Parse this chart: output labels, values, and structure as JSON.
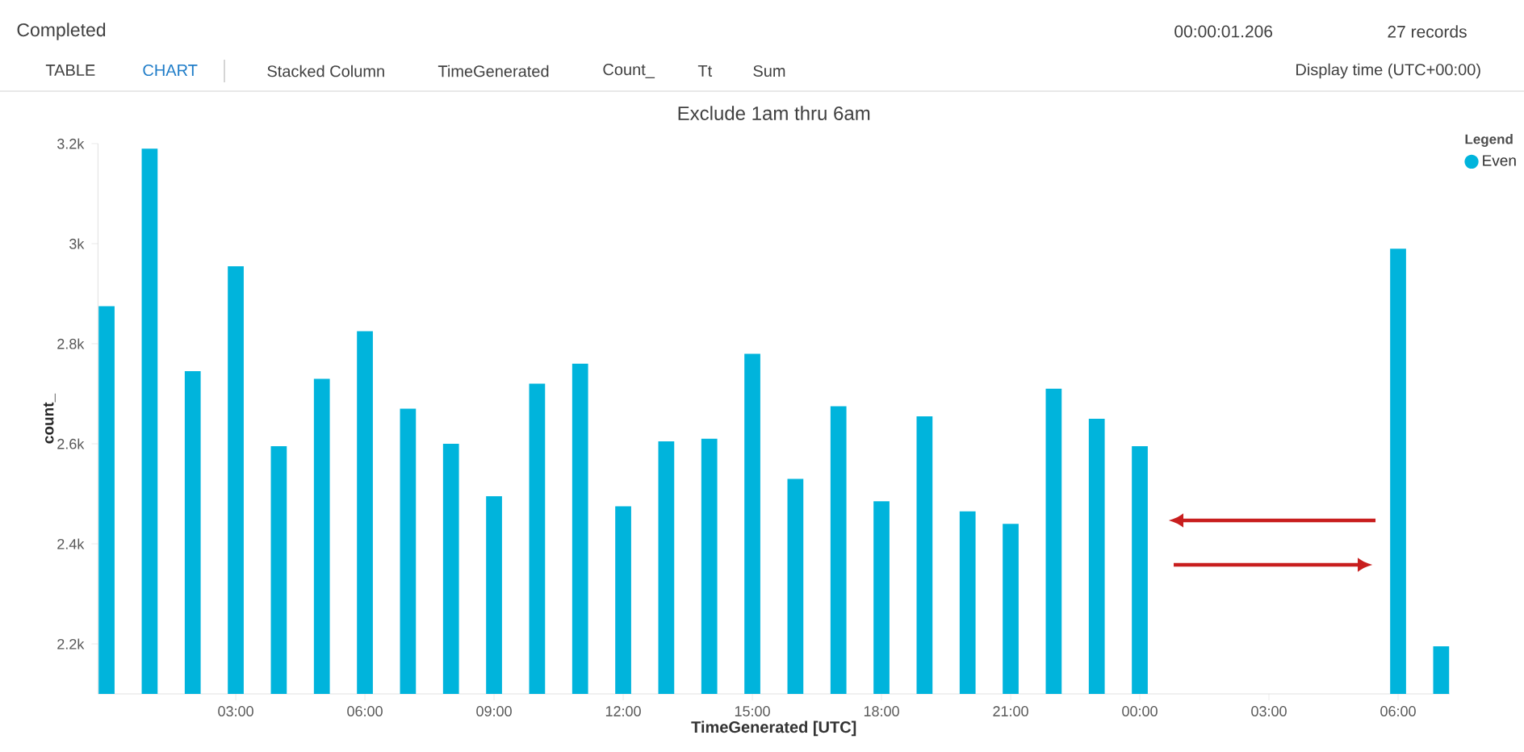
{
  "chart_data": {
    "type": "bar",
    "title": "Exclude 1am thru 6am",
    "xlabel": "TimeGenerated [UTC]",
    "ylabel": "count_",
    "legend_title": "Legend",
    "legend": "top right",
    "categories": [
      null,
      null,
      null,
      "03:00",
      null,
      null,
      "06:00",
      null,
      null,
      "09:00",
      null,
      null,
      "12:00",
      null,
      null,
      "15:00",
      null,
      null,
      "18:00",
      null,
      null,
      "21:00",
      null,
      null,
      "00:00",
      null,
      null,
      "03:00",
      null,
      null,
      "06:00",
      null
    ],
    "series": [
      {
        "name": "Even",
        "color": "#00b4dc",
        "values": [
          2875,
          3190,
          2745,
          2955,
          2595,
          2730,
          2825,
          2670,
          2600,
          2495,
          2720,
          2760,
          2475,
          2605,
          2610,
          2780,
          2530,
          2675,
          2485,
          2655,
          2465,
          2440,
          2710,
          2650,
          2595,
          null,
          null,
          null,
          null,
          null,
          2990,
          2195
        ]
      }
    ],
    "ylim": [
      2100,
      3200
    ],
    "yticks": [
      {
        "value": 2200,
        "label": "2.2k"
      },
      {
        "value": 2400,
        "label": "2.4k"
      },
      {
        "value": 2600,
        "label": "2.6k"
      },
      {
        "value": 2800,
        "label": "2.8k"
      },
      {
        "value": 3000,
        "label": "3k"
      },
      {
        "value": 3200,
        "label": "3.2k"
      }
    ],
    "annotations": [
      "Completed",
      "00:00:01.206",
      "27 records",
      "TABLE",
      "CHART",
      "Stacked Column",
      "TimeGenerated",
      "Count_",
      "Tt",
      "Sum",
      "Display time (UTC+00:00)"
    ]
  }
}
